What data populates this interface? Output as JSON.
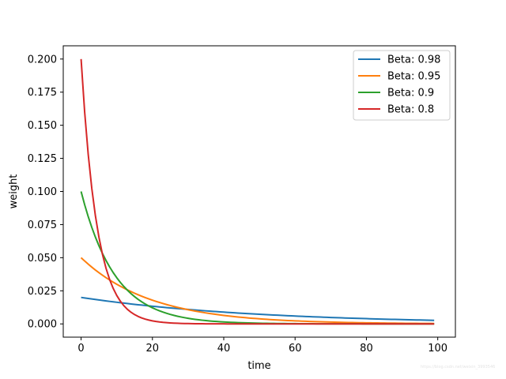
{
  "chart_data": {
    "type": "line",
    "title": "",
    "xlabel": "time",
    "ylabel": "weight",
    "xlim": [
      -5,
      104.95
    ],
    "ylim": [
      -0.01,
      0.21
    ],
    "xticks": [
      "0",
      "20",
      "40",
      "60",
      "80",
      "100"
    ],
    "yticks": [
      "0.000",
      "0.025",
      "0.050",
      "0.075",
      "0.100",
      "0.125",
      "0.150",
      "0.175",
      "0.200"
    ],
    "grid": false,
    "legend_position": "top-right",
    "series": [
      {
        "name": "Beta: 0.98",
        "color": "#1f77b4",
        "beta": 0.98,
        "x": [
          0,
          10,
          20,
          30,
          40,
          50,
          60,
          70,
          80,
          90,
          99
        ],
        "y": [
          0.02,
          0.0163,
          0.0134,
          0.0109,
          0.0089,
          0.0073,
          0.006,
          0.0049,
          0.004,
          0.0033,
          0.0027
        ]
      },
      {
        "name": "Beta: 0.95",
        "color": "#ff7f0e",
        "beta": 0.95,
        "x": [
          0,
          10,
          20,
          30,
          40,
          50,
          60,
          70,
          80,
          90,
          99
        ],
        "y": [
          0.05,
          0.0299,
          0.0179,
          0.0107,
          0.0064,
          0.0038,
          0.0023,
          0.0014,
          0.0008,
          0.0005,
          0.0003
        ]
      },
      {
        "name": "Beta: 0.9",
        "color": "#2ca02c",
        "beta": 0.9,
        "x": [
          0,
          10,
          20,
          30,
          40,
          50,
          60,
          70,
          80,
          90,
          99
        ],
        "y": [
          0.1,
          0.0349,
          0.0122,
          0.0042,
          0.0015,
          0.0005,
          0.0002,
          0.0001,
          0.0,
          0.0,
          0.0
        ]
      },
      {
        "name": "Beta: 0.8",
        "color": "#d62728",
        "beta": 0.8,
        "x": [
          0,
          10,
          20,
          30,
          40,
          50,
          60,
          70,
          80,
          90,
          99
        ],
        "y": [
          0.2,
          0.0215,
          0.0023,
          0.0002,
          0.0,
          0.0,
          0.0,
          0.0,
          0.0,
          0.0,
          0.0
        ]
      }
    ]
  },
  "watermark": "https://blog.csdn.net/weixin_3993546"
}
